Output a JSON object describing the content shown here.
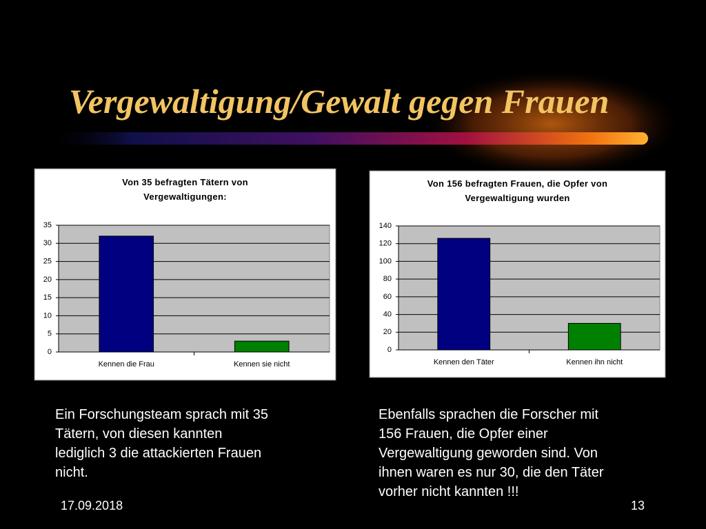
{
  "slide": {
    "title": "Vergewaltigung/Gewalt gegen Frauen",
    "left_text": [
      "Ein Forschungsteam sprach mit 35",
      "Tätern, von diesen kannten",
      "lediglich 3 die attackierten Frauen",
      "nicht."
    ],
    "right_text": [
      "Ebenfalls sprachen die Forscher mit",
      "156 Frauen, die Opfer einer",
      "Vergewaltigung geworden sind. Von",
      "ihnen waren es nur 30, die den Täter",
      "vorher nicht kannten !!!"
    ],
    "date": "17.09.2018",
    "page": "13"
  },
  "chart_data": [
    {
      "type": "bar",
      "title": "Von 35 befragten Tätern von Vergewaltigungen:",
      "categories": [
        "Kennen die Frau",
        "Kennen sie nicht"
      ],
      "values": [
        32,
        3
      ],
      "colors": [
        "#000080",
        "#008000"
      ],
      "ylim": [
        0,
        35
      ],
      "yticks": [
        0,
        5,
        10,
        15,
        20,
        25,
        30,
        35
      ],
      "grid": true
    },
    {
      "type": "bar",
      "title": "Von 156 befragten Frauen, die Opfer von Vergewaltigung wurden",
      "categories": [
        "Kennen den Täter",
        "Kennen ihn nicht"
      ],
      "values": [
        126,
        30
      ],
      "colors": [
        "#000080",
        "#008000"
      ],
      "ylim": [
        0,
        140
      ],
      "yticks": [
        0,
        20,
        40,
        60,
        80,
        100,
        120,
        140
      ],
      "grid": true
    }
  ]
}
